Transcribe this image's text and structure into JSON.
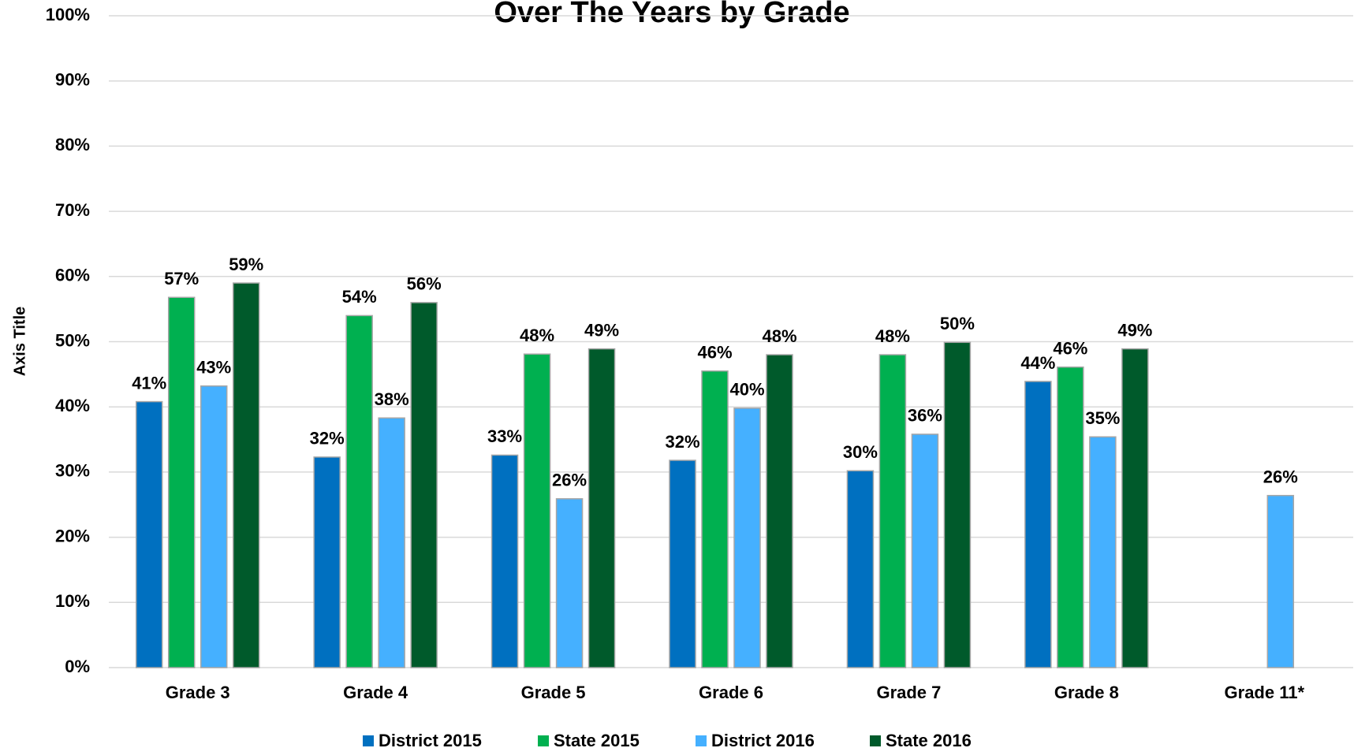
{
  "chart_data": {
    "type": "bar",
    "title": "Over The Years by Grade",
    "y_axis_label": "Axis Title",
    "categories": [
      "Grade 3",
      "Grade 4",
      "Grade 5",
      "Grade 6",
      "Grade 7",
      "Grade 8",
      "Grade 11*"
    ],
    "series": [
      {
        "name": "District 2015",
        "color": "#0070c0",
        "values": [
          40.8,
          32.3,
          32.6,
          31.8,
          30.2,
          43.9,
          null
        ],
        "value_labels": [
          "41%",
          "32%",
          "33%",
          "32%",
          "30%",
          "44%",
          null
        ]
      },
      {
        "name": "State 2015",
        "color": "#00b050",
        "values": [
          56.8,
          54.0,
          48.1,
          45.5,
          48.0,
          46.1,
          null
        ],
        "value_labels": [
          "57%",
          "54%",
          "48%",
          "46%",
          "48%",
          "46%",
          null
        ]
      },
      {
        "name": "District 2016",
        "color": "#45b0ff",
        "values": [
          43.2,
          38.3,
          25.9,
          39.8,
          35.8,
          35.4,
          26.4
        ],
        "value_labels": [
          "43%",
          "38%",
          "26%",
          "40%",
          "36%",
          "35%",
          "26%"
        ]
      },
      {
        "name": "State 2016",
        "color": "#005a2b",
        "values": [
          59.0,
          56.0,
          48.9,
          48.0,
          49.9,
          48.9,
          null
        ],
        "value_labels": [
          "59%",
          "56%",
          "49%",
          "48%",
          "50%",
          "49%",
          null
        ]
      }
    ],
    "ylim": [
      0,
      100
    ],
    "yticks": [
      {
        "value": 0,
        "label": "0%"
      },
      {
        "value": 10,
        "label": "10%"
      },
      {
        "value": 20,
        "label": "20%"
      },
      {
        "value": 30,
        "label": "30%"
      },
      {
        "value": 40,
        "label": "40%"
      },
      {
        "value": 50,
        "label": "50%"
      },
      {
        "value": 60,
        "label": "60%"
      },
      {
        "value": 70,
        "label": "70%"
      },
      {
        "value": 80,
        "label": "80%"
      },
      {
        "value": 90,
        "label": "90%"
      },
      {
        "value": 100,
        "label": "100%"
      }
    ],
    "grid": true,
    "legend": "bottom"
  }
}
